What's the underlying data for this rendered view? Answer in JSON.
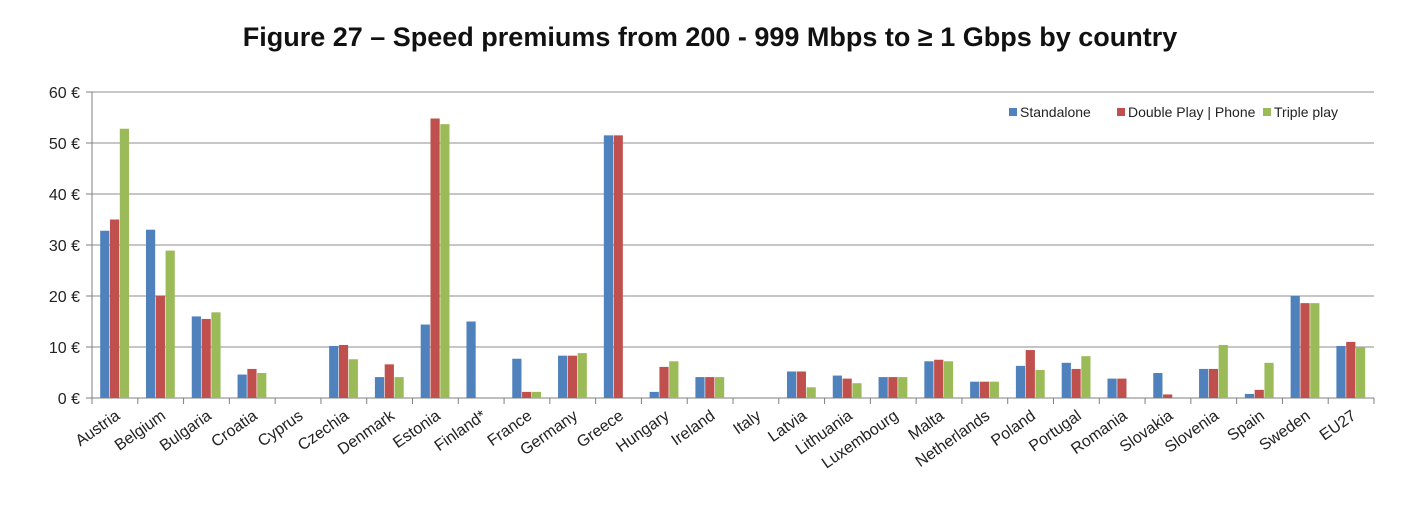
{
  "chart_data": {
    "type": "bar",
    "title": "Figure 27 – Speed premiums from 200 - 999 Mbps to ≥ 1 Gbps by country",
    "xlabel": "",
    "ylabel": "",
    "ylim": [
      0,
      60
    ],
    "yticks": [
      0,
      10,
      20,
      30,
      40,
      50,
      60
    ],
    "ytick_labels": [
      "0 €",
      "10 €",
      "20 €",
      "30 €",
      "40 €",
      "50 €",
      "60 €"
    ],
    "grid": true,
    "legend_position": "top-right",
    "categories": [
      "Austria",
      "Belgium",
      "Bulgaria",
      "Croatia",
      "Cyprus",
      "Czechia",
      "Denmark",
      "Estonia",
      "Finland*",
      "France",
      "Germany",
      "Greece",
      "Hungary",
      "Ireland",
      "Italy",
      "Latvia",
      "Lithuania",
      "Luxembourg",
      "Malta",
      "Netherlands",
      "Poland",
      "Portugal",
      "Romania",
      "Slovakia",
      "Slovenia",
      "Spain",
      "Sweden",
      "EU27"
    ],
    "series": [
      {
        "name": "Standalone",
        "color": "#4f81bd",
        "values": [
          32.8,
          33.0,
          16.0,
          4.6,
          0,
          10.2,
          4.1,
          14.4,
          15.0,
          7.7,
          8.3,
          51.5,
          1.2,
          4.1,
          0,
          5.2,
          4.4,
          4.1,
          7.2,
          3.2,
          6.3,
          6.9,
          3.8,
          4.9,
          5.7,
          0.8,
          20.0,
          10.2
        ]
      },
      {
        "name": "Double Play | Phone",
        "color": "#c0504d",
        "values": [
          35.0,
          20.1,
          15.5,
          5.7,
          0,
          10.4,
          6.6,
          54.8,
          0,
          1.2,
          8.3,
          51.5,
          6.1,
          4.1,
          0,
          5.2,
          3.8,
          4.1,
          7.5,
          3.2,
          9.4,
          5.7,
          3.8,
          0.7,
          5.7,
          1.6,
          18.6,
          11.0
        ]
      },
      {
        "name": "Triple play",
        "color": "#9bbb59",
        "values": [
          52.8,
          28.9,
          16.8,
          4.9,
          0,
          7.6,
          4.1,
          53.7,
          0,
          1.2,
          8.8,
          0,
          7.2,
          4.1,
          0,
          2.1,
          2.9,
          4.1,
          7.2,
          3.2,
          5.5,
          8.2,
          0,
          0,
          10.4,
          6.9,
          18.6,
          10.0
        ]
      }
    ]
  }
}
